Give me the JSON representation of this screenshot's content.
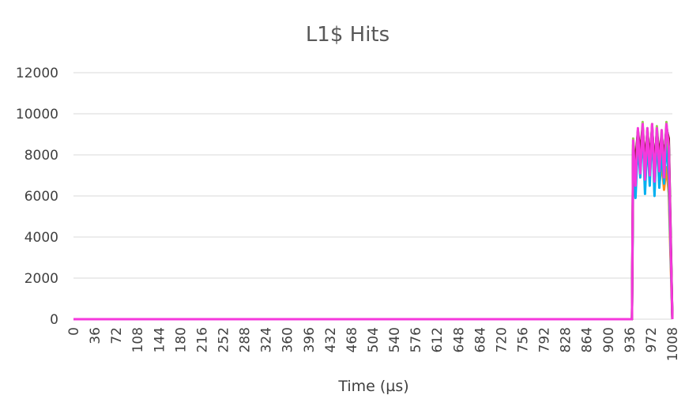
{
  "chart_data": {
    "type": "line",
    "title": "L1$ Hits",
    "xlabel": "Time (µs)",
    "ylabel": "",
    "ylim": [
      0,
      12000
    ],
    "xlim": [
      0,
      1008
    ],
    "y_ticks": [
      "0",
      "2000",
      "4000",
      "6000",
      "8000",
      "10000",
      "12000"
    ],
    "x_ticks": [
      "0",
      "36",
      "72",
      "108",
      "144",
      "180",
      "216",
      "252",
      "288",
      "324",
      "360",
      "396",
      "432",
      "468",
      "504",
      "540",
      "576",
      "612",
      "648",
      "684",
      "720",
      "756",
      "792",
      "828",
      "864",
      "900",
      "936",
      "972",
      "1008"
    ],
    "grid": true,
    "legend": "none",
    "series": [
      {
        "color": "#FF8C1A",
        "x": [
          0,
          940,
          942,
          946,
          950,
          954,
          958,
          962,
          966,
          970,
          974,
          978,
          982,
          986,
          990,
          994,
          998,
          1002,
          1005,
          1008
        ],
        "y": [
          0,
          0,
          7800,
          6300,
          8900,
          7100,
          9400,
          6300,
          9000,
          6700,
          9500,
          6200,
          9300,
          6500,
          7600,
          6300,
          7400,
          6100,
          3000,
          0
        ]
      },
      {
        "color": "#00B0F0",
        "x": [
          0,
          940,
          942,
          946,
          950,
          954,
          958,
          962,
          966,
          970,
          974,
          978,
          982,
          986,
          990,
          994,
          998,
          1002,
          1005,
          1008
        ],
        "y": [
          0,
          0,
          7200,
          5900,
          8600,
          6900,
          9200,
          6100,
          8800,
          6500,
          9300,
          6000,
          9100,
          6400,
          8200,
          6600,
          8600,
          6900,
          3500,
          0
        ]
      },
      {
        "color": "#92D050",
        "x": [
          0,
          940,
          942,
          946,
          950,
          954,
          958,
          962,
          966,
          970,
          974,
          978,
          982,
          986,
          990,
          994,
          998,
          1002,
          1005,
          1008
        ],
        "y": [
          0,
          0,
          8800,
          7400,
          9000,
          7900,
          9600,
          7200,
          9300,
          7600,
          9500,
          7100,
          9400,
          7800,
          9200,
          7400,
          9600,
          8000,
          4200,
          0
        ]
      },
      {
        "color": "#7030A0",
        "x": [
          0,
          940,
          942,
          946,
          950,
          954,
          958,
          962,
          966,
          970,
          974,
          978,
          982,
          986,
          990,
          994,
          998,
          1002,
          1005,
          1008
        ],
        "y": [
          0,
          0,
          8300,
          7600,
          9100,
          8000,
          9300,
          7500,
          9100,
          7700,
          9400,
          7300,
          9200,
          7900,
          9000,
          7700,
          9400,
          8600,
          4500,
          0
        ]
      },
      {
        "color": "#7B1F1F",
        "x": [
          0,
          940,
          942,
          946,
          950,
          954,
          958,
          962,
          966,
          970,
          974,
          978,
          982,
          986,
          990,
          994,
          998,
          1002,
          1005,
          1008
        ],
        "y": [
          0,
          0,
          8500,
          7700,
          9200,
          8100,
          9400,
          7600,
          9200,
          7800,
          9300,
          7400,
          9100,
          8000,
          8900,
          7800,
          9300,
          8800,
          4300,
          0
        ]
      },
      {
        "color": "#F538DC",
        "x": [
          0,
          940,
          942,
          946,
          950,
          954,
          958,
          962,
          966,
          970,
          974,
          978,
          982,
          986,
          990,
          994,
          998,
          1002,
          1005,
          1008
        ],
        "y": [
          0,
          0,
          8700,
          6500,
          9300,
          7100,
          9500,
          6800,
          9300,
          7000,
          9500,
          6700,
          9300,
          7200,
          9200,
          6900,
          9500,
          8400,
          4000,
          0
        ]
      }
    ]
  }
}
